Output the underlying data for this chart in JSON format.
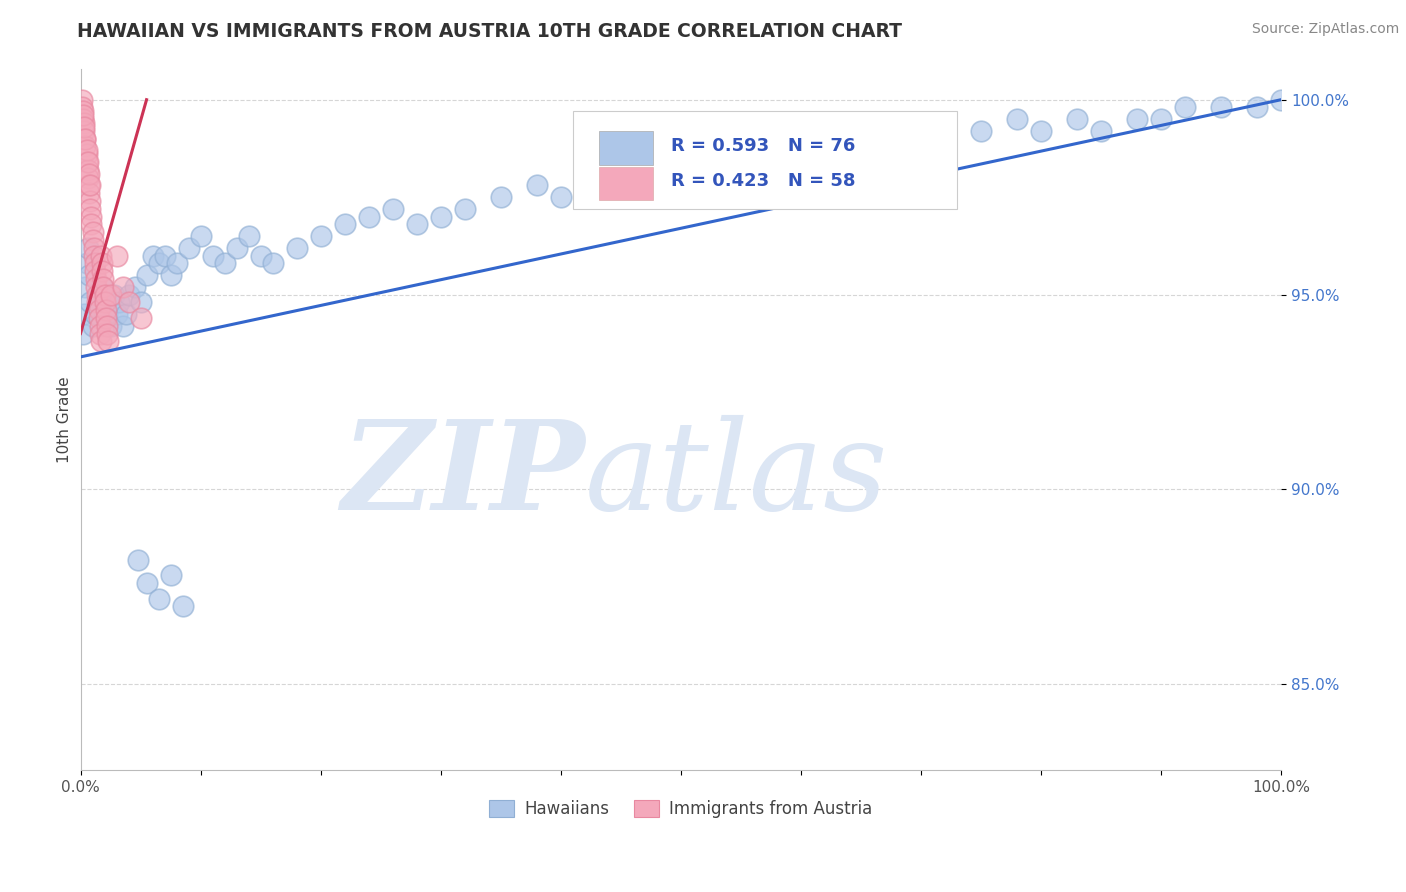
{
  "title": "HAWAIIAN VS IMMIGRANTS FROM AUSTRIA 10TH GRADE CORRELATION CHART",
  "source_text": "Source: ZipAtlas.com",
  "ylabel": "10th Grade",
  "xlim": [
    0,
    1.0
  ],
  "ylim": [
    0.828,
    1.008
  ],
  "yticks": [
    0.85,
    0.9,
    0.95,
    1.0
  ],
  "ytick_labels": [
    "85.0%",
    "90.0%",
    "95.0%",
    "100.0%"
  ],
  "legend_labels": [
    "Hawaiians",
    "Immigrants from Austria"
  ],
  "blue_color": "#adc6e8",
  "pink_color": "#f4a8bb",
  "blue_edge_color": "#90afd4",
  "pink_edge_color": "#e888a0",
  "blue_line_color": "#3366cc",
  "pink_line_color": "#cc3355",
  "watermark_zip": "ZIP",
  "watermark_atlas": "atlas",
  "watermark_color": "#dce6f4",
  "blue_scatter_x": [
    0.002,
    0.003,
    0.004,
    0.005,
    0.006,
    0.007,
    0.008,
    0.01,
    0.012,
    0.015,
    0.018,
    0.02,
    0.022,
    0.025,
    0.028,
    0.03,
    0.032,
    0.035,
    0.038,
    0.04,
    0.045,
    0.05,
    0.055,
    0.06,
    0.065,
    0.07,
    0.075,
    0.08,
    0.09,
    0.1,
    0.11,
    0.12,
    0.13,
    0.14,
    0.15,
    0.16,
    0.18,
    0.2,
    0.22,
    0.24,
    0.26,
    0.28,
    0.3,
    0.32,
    0.35,
    0.38,
    0.4,
    0.42,
    0.45,
    0.48,
    0.5,
    0.52,
    0.55,
    0.58,
    0.6,
    0.62,
    0.65,
    0.68,
    0.7,
    0.72,
    0.75,
    0.78,
    0.8,
    0.83,
    0.85,
    0.88,
    0.9,
    0.92,
    0.95,
    0.98,
    1.0,
    0.048,
    0.055,
    0.065,
    0.075,
    0.085
  ],
  "blue_scatter_y": [
    0.94,
    0.945,
    0.952,
    0.958,
    0.962,
    0.955,
    0.948,
    0.942,
    0.945,
    0.95,
    0.952,
    0.948,
    0.945,
    0.942,
    0.95,
    0.945,
    0.948,
    0.942,
    0.945,
    0.95,
    0.952,
    0.948,
    0.955,
    0.96,
    0.958,
    0.96,
    0.955,
    0.958,
    0.962,
    0.965,
    0.96,
    0.958,
    0.962,
    0.965,
    0.96,
    0.958,
    0.962,
    0.965,
    0.968,
    0.97,
    0.972,
    0.968,
    0.97,
    0.972,
    0.975,
    0.978,
    0.975,
    0.978,
    0.98,
    0.982,
    0.985,
    0.982,
    0.985,
    0.988,
    0.985,
    0.988,
    0.99,
    0.992,
    0.988,
    0.99,
    0.992,
    0.995,
    0.992,
    0.995,
    0.992,
    0.995,
    0.995,
    0.998,
    0.998,
    0.998,
    1.0,
    0.882,
    0.876,
    0.872,
    0.878,
    0.87
  ],
  "pink_scatter_x": [
    0.001,
    0.001,
    0.002,
    0.002,
    0.003,
    0.003,
    0.004,
    0.004,
    0.005,
    0.005,
    0.006,
    0.006,
    0.007,
    0.007,
    0.008,
    0.008,
    0.009,
    0.009,
    0.01,
    0.01,
    0.011,
    0.011,
    0.012,
    0.012,
    0.013,
    0.013,
    0.014,
    0.014,
    0.015,
    0.015,
    0.016,
    0.016,
    0.017,
    0.017,
    0.018,
    0.018,
    0.019,
    0.019,
    0.02,
    0.02,
    0.021,
    0.021,
    0.022,
    0.022,
    0.023,
    0.025,
    0.03,
    0.035,
    0.04,
    0.05,
    0.002,
    0.003,
    0.004,
    0.005,
    0.006,
    0.007,
    0.008
  ],
  "pink_scatter_y": [
    1.0,
    0.998,
    0.997,
    0.995,
    0.994,
    0.992,
    0.99,
    0.988,
    0.986,
    0.984,
    0.982,
    0.98,
    0.978,
    0.976,
    0.974,
    0.972,
    0.97,
    0.968,
    0.966,
    0.964,
    0.962,
    0.96,
    0.958,
    0.956,
    0.954,
    0.952,
    0.95,
    0.948,
    0.946,
    0.944,
    0.942,
    0.94,
    0.938,
    0.96,
    0.958,
    0.956,
    0.954,
    0.952,
    0.95,
    0.948,
    0.946,
    0.944,
    0.942,
    0.94,
    0.938,
    0.95,
    0.96,
    0.952,
    0.948,
    0.944,
    0.996,
    0.993,
    0.99,
    0.987,
    0.984,
    0.981,
    0.978
  ],
  "blue_line_x": [
    0.0,
    1.0
  ],
  "blue_line_y": [
    0.934,
    1.0
  ],
  "pink_line_x": [
    0.0,
    0.055
  ],
  "pink_line_y": [
    0.94,
    1.0
  ]
}
